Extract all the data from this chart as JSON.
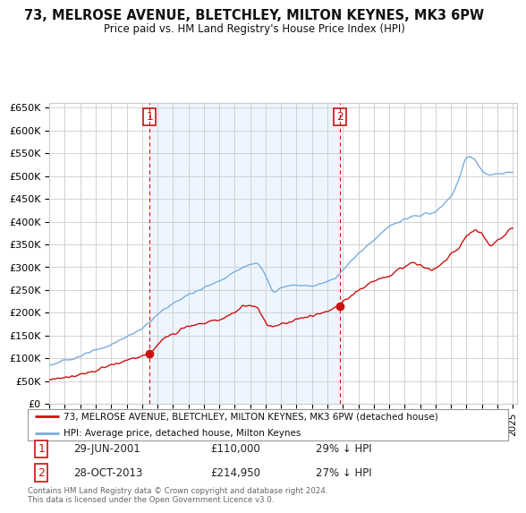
{
  "title": "73, MELROSE AVENUE, BLETCHLEY, MILTON KEYNES, MK3 6PW",
  "subtitle": "Price paid vs. HM Land Registry's House Price Index (HPI)",
  "ylim": [
    0,
    660000
  ],
  "yticks": [
    0,
    50000,
    100000,
    150000,
    200000,
    250000,
    300000,
    350000,
    400000,
    450000,
    500000,
    550000,
    600000,
    650000
  ],
  "ytick_labels": [
    "£0",
    "£50K",
    "£100K",
    "£150K",
    "£200K",
    "£250K",
    "£300K",
    "£350K",
    "£400K",
    "£450K",
    "£500K",
    "£550K",
    "£600K",
    "£650K"
  ],
  "sale1_date": 2001.49,
  "sale1_price": 110000,
  "sale2_date": 2013.82,
  "sale2_price": 214950,
  "hpi_color": "#7aaddc",
  "hpi_fill_color": "#ddeeff",
  "price_color": "#cc1111",
  "vline_color": "#cc1111",
  "background_color": "#ffffff",
  "grid_color": "#cccccc",
  "shade_color": "#ddeeff",
  "legend1_text": "73, MELROSE AVENUE, BLETCHLEY, MILTON KEYNES, MK3 6PW (detached house)",
  "legend2_text": "HPI: Average price, detached house, Milton Keynes",
  "annotation1": "29-JUN-2001",
  "annotation1_price": "£110,000",
  "annotation1_hpi": "29% ↓ HPI",
  "annotation2": "28-OCT-2013",
  "annotation2_price": "£214,950",
  "annotation2_hpi": "27% ↓ HPI",
  "footer": "Contains HM Land Registry data © Crown copyright and database right 2024.\nThis data is licensed under the Open Government Licence v3.0."
}
